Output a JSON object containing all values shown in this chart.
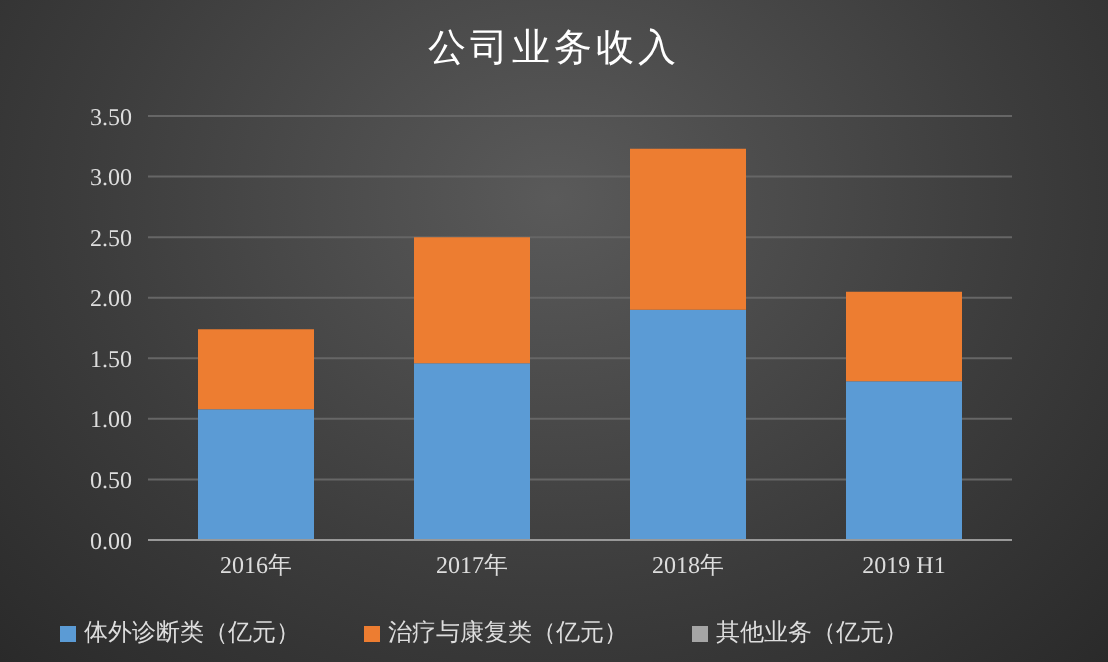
{
  "chart_data": {
    "type": "bar",
    "title": "公司业务收入",
    "categories": [
      "2016年",
      "2017年",
      "2018年",
      "2019 H1"
    ],
    "stacked": true,
    "series": [
      {
        "name": "体外诊断类（亿元）",
        "color": "#5b9bd5",
        "values": [
          1.08,
          1.46,
          1.9,
          1.31
        ]
      },
      {
        "name": "治疗与康复类（亿元）",
        "color": "#ed7d31",
        "values": [
          0.66,
          1.04,
          1.33,
          0.74
        ]
      },
      {
        "name": "其他业务（亿元）",
        "color": "#a5a5a5",
        "values": [
          0,
          0,
          0,
          0
        ]
      }
    ],
    "ylim": [
      0,
      3.5
    ],
    "yticks": [
      {
        "value": 0,
        "label": "0.00"
      },
      {
        "value": 0.5,
        "label": "0.50"
      },
      {
        "value": 1,
        "label": "1.00"
      },
      {
        "value": 1.5,
        "label": "1.50"
      },
      {
        "value": 2,
        "label": "2.00"
      },
      {
        "value": 2.5,
        "label": "2.50"
      },
      {
        "value": 3,
        "label": "3.00"
      },
      {
        "value": 3.5,
        "label": "3.50"
      }
    ],
    "grid": "y",
    "legend": "bottom"
  }
}
